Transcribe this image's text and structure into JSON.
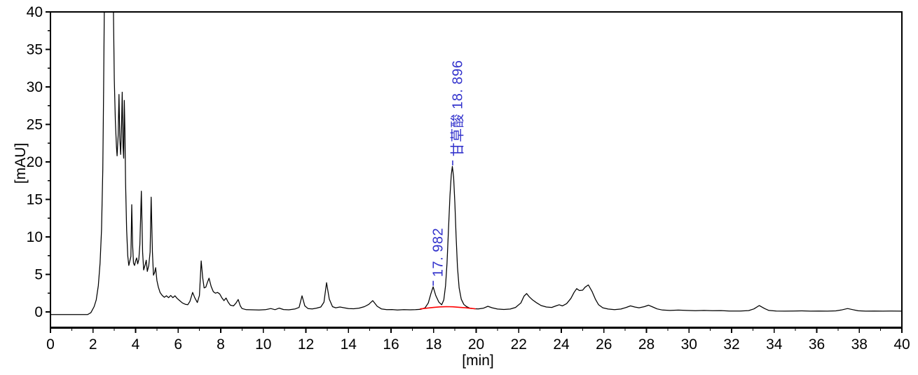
{
  "figure": {
    "background": "#ffffff",
    "y_axis": {
      "label": "[mAU]",
      "min": 0,
      "max": 40,
      "major_step": 5,
      "minor_step": 2.5,
      "tick_labels": [
        "0",
        "5",
        "10",
        "15",
        "20",
        "25",
        "30",
        "35",
        "40"
      ]
    },
    "x_axis": {
      "label": "[min]",
      "min": 0,
      "max": 40,
      "major_step": 2,
      "minor_step": 1,
      "tick_labels": [
        "0",
        "2",
        "4",
        "6",
        "8",
        "10",
        "12",
        "14",
        "16",
        "18",
        "20",
        "22",
        "24",
        "26",
        "28",
        "30",
        "32",
        "34",
        "36",
        "38",
        "40"
      ]
    },
    "colors": {
      "trace": "#000000",
      "integration_baseline": "#ff0000",
      "peak_annotation": "#3333cc",
      "axis": "#000000"
    }
  },
  "chart_data": {
    "type": "line",
    "title": "",
    "xlabel": "[min]",
    "ylabel": "[mAU]",
    "xlim": [
      0,
      40
    ],
    "ylim": [
      0,
      40
    ],
    "grid": false,
    "legend": false,
    "series": [
      {
        "name": "detector-signal",
        "color": "#000000",
        "points": [
          [
            0,
            -0.35
          ],
          [
            0.5,
            -0.35
          ],
          [
            1.0,
            -0.35
          ],
          [
            1.4,
            -0.35
          ],
          [
            1.75,
            -0.35
          ],
          [
            1.9,
            -0.1
          ],
          [
            2.05,
            0.7
          ],
          [
            2.15,
            1.6
          ],
          [
            2.25,
            3.5
          ],
          [
            2.33,
            6.5
          ],
          [
            2.4,
            11
          ],
          [
            2.46,
            19
          ],
          [
            2.5,
            30
          ],
          [
            2.53,
            40
          ],
          [
            2.56,
            43
          ],
          [
            2.93,
            43
          ],
          [
            2.96,
            40
          ],
          [
            3.0,
            31
          ],
          [
            3.05,
            25.5
          ],
          [
            3.1,
            22
          ],
          [
            3.13,
            20.8
          ],
          [
            3.18,
            23.5
          ],
          [
            3.22,
            29.0
          ],
          [
            3.26,
            23
          ],
          [
            3.3,
            21.0
          ],
          [
            3.34,
            25
          ],
          [
            3.37,
            29.3
          ],
          [
            3.41,
            22
          ],
          [
            3.44,
            20.5
          ],
          [
            3.47,
            28.2
          ],
          [
            3.5,
            24
          ],
          [
            3.53,
            17.2
          ],
          [
            3.58,
            11
          ],
          [
            3.63,
            7.5
          ],
          [
            3.68,
            6.2
          ],
          [
            3.73,
            6.8
          ],
          [
            3.78,
            7.4
          ],
          [
            3.82,
            14.3
          ],
          [
            3.86,
            9
          ],
          [
            3.9,
            6.5
          ],
          [
            3.95,
            6.2
          ],
          [
            4.0,
            6.8
          ],
          [
            4.05,
            7.2
          ],
          [
            4.1,
            6.4
          ],
          [
            4.15,
            7.0
          ],
          [
            4.2,
            9
          ],
          [
            4.27,
            16.1
          ],
          [
            4.33,
            8
          ],
          [
            4.38,
            5.6
          ],
          [
            4.45,
            6.3
          ],
          [
            4.5,
            6.9
          ],
          [
            4.55,
            5.4
          ],
          [
            4.62,
            6.2
          ],
          [
            4.68,
            8
          ],
          [
            4.73,
            15.3
          ],
          [
            4.79,
            8
          ],
          [
            4.84,
            4.9
          ],
          [
            4.9,
            5.3
          ],
          [
            4.94,
            5.9
          ],
          [
            5.0,
            4.2
          ],
          [
            5.07,
            3.3
          ],
          [
            5.15,
            2.6
          ],
          [
            5.25,
            2.2
          ],
          [
            5.35,
            1.95
          ],
          [
            5.45,
            2.15
          ],
          [
            5.55,
            1.9
          ],
          [
            5.65,
            2.2
          ],
          [
            5.75,
            1.9
          ],
          [
            5.85,
            2.15
          ],
          [
            5.95,
            1.8
          ],
          [
            6.05,
            1.55
          ],
          [
            6.2,
            1.2
          ],
          [
            6.35,
            1.0
          ],
          [
            6.45,
            0.95
          ],
          [
            6.55,
            1.4
          ],
          [
            6.68,
            2.6
          ],
          [
            6.78,
            1.9
          ],
          [
            6.9,
            1.25
          ],
          [
            7.0,
            2.2
          ],
          [
            7.08,
            6.8
          ],
          [
            7.15,
            4.6
          ],
          [
            7.22,
            3.2
          ],
          [
            7.3,
            3.3
          ],
          [
            7.38,
            4.0
          ],
          [
            7.45,
            4.5
          ],
          [
            7.55,
            3.4
          ],
          [
            7.65,
            2.7
          ],
          [
            7.75,
            2.5
          ],
          [
            7.85,
            2.6
          ],
          [
            7.95,
            2.4
          ],
          [
            8.05,
            1.9
          ],
          [
            8.15,
            1.5
          ],
          [
            8.25,
            1.85
          ],
          [
            8.35,
            1.3
          ],
          [
            8.45,
            0.9
          ],
          [
            8.6,
            0.8
          ],
          [
            8.72,
            1.2
          ],
          [
            8.82,
            1.65
          ],
          [
            8.92,
            0.8
          ],
          [
            9.0,
            0.45
          ],
          [
            9.2,
            0.3
          ],
          [
            9.5,
            0.28
          ],
          [
            9.8,
            0.25
          ],
          [
            10.1,
            0.3
          ],
          [
            10.35,
            0.45
          ],
          [
            10.55,
            0.3
          ],
          [
            10.75,
            0.5
          ],
          [
            10.95,
            0.32
          ],
          [
            11.2,
            0.28
          ],
          [
            11.5,
            0.4
          ],
          [
            11.68,
            0.6
          ],
          [
            11.82,
            2.15
          ],
          [
            11.95,
            0.8
          ],
          [
            12.1,
            0.45
          ],
          [
            12.3,
            0.4
          ],
          [
            12.5,
            0.5
          ],
          [
            12.7,
            0.65
          ],
          [
            12.85,
            1.3
          ],
          [
            12.97,
            3.9
          ],
          [
            13.1,
            1.7
          ],
          [
            13.25,
            0.7
          ],
          [
            13.4,
            0.55
          ],
          [
            13.6,
            0.65
          ],
          [
            13.8,
            0.55
          ],
          [
            14.0,
            0.45
          ],
          [
            14.25,
            0.42
          ],
          [
            14.5,
            0.5
          ],
          [
            14.75,
            0.7
          ],
          [
            14.95,
            1.0
          ],
          [
            15.14,
            1.5
          ],
          [
            15.35,
            0.75
          ],
          [
            15.55,
            0.4
          ],
          [
            15.8,
            0.3
          ],
          [
            16.05,
            0.32
          ],
          [
            16.3,
            0.25
          ],
          [
            16.6,
            0.3
          ],
          [
            16.9,
            0.28
          ],
          [
            17.15,
            0.3
          ],
          [
            17.4,
            0.35
          ],
          [
            17.6,
            0.55
          ],
          [
            17.75,
            1.2
          ],
          [
            17.87,
            2.4
          ],
          [
            17.98,
            3.35
          ],
          [
            18.1,
            2.2
          ],
          [
            18.25,
            1.3
          ],
          [
            18.38,
            0.95
          ],
          [
            18.48,
            1.6
          ],
          [
            18.56,
            3.5
          ],
          [
            18.63,
            6.5
          ],
          [
            18.7,
            11
          ],
          [
            18.77,
            15.5
          ],
          [
            18.83,
            18.3
          ],
          [
            18.88,
            19.4
          ],
          [
            18.94,
            18
          ],
          [
            19.0,
            14.5
          ],
          [
            19.06,
            10
          ],
          [
            19.12,
            6
          ],
          [
            19.2,
            3.2
          ],
          [
            19.3,
            1.7
          ],
          [
            19.42,
            1.0
          ],
          [
            19.55,
            0.7
          ],
          [
            19.7,
            0.5
          ],
          [
            19.9,
            0.42
          ],
          [
            20.1,
            0.4
          ],
          [
            20.35,
            0.5
          ],
          [
            20.55,
            0.75
          ],
          [
            20.75,
            0.55
          ],
          [
            21.0,
            0.38
          ],
          [
            21.3,
            0.33
          ],
          [
            21.6,
            0.38
          ],
          [
            21.85,
            0.6
          ],
          [
            22.1,
            1.2
          ],
          [
            22.25,
            2.1
          ],
          [
            22.37,
            2.45
          ],
          [
            22.5,
            2.0
          ],
          [
            22.65,
            1.6
          ],
          [
            22.85,
            1.2
          ],
          [
            23.05,
            0.85
          ],
          [
            23.3,
            0.65
          ],
          [
            23.55,
            0.6
          ],
          [
            23.75,
            0.8
          ],
          [
            23.9,
            0.95
          ],
          [
            24.05,
            0.8
          ],
          [
            24.25,
            1.1
          ],
          [
            24.45,
            1.8
          ],
          [
            24.6,
            2.6
          ],
          [
            24.72,
            3.1
          ],
          [
            24.85,
            2.85
          ],
          [
            25.0,
            2.9
          ],
          [
            25.12,
            3.3
          ],
          [
            25.27,
            3.6
          ],
          [
            25.45,
            2.7
          ],
          [
            25.6,
            1.7
          ],
          [
            25.75,
            0.95
          ],
          [
            25.95,
            0.55
          ],
          [
            26.2,
            0.38
          ],
          [
            26.5,
            0.3
          ],
          [
            26.8,
            0.38
          ],
          [
            27.05,
            0.6
          ],
          [
            27.25,
            0.8
          ],
          [
            27.45,
            0.65
          ],
          [
            27.65,
            0.55
          ],
          [
            27.9,
            0.7
          ],
          [
            28.1,
            0.9
          ],
          [
            28.3,
            0.65
          ],
          [
            28.5,
            0.4
          ],
          [
            28.75,
            0.25
          ],
          [
            29.1,
            0.2
          ],
          [
            29.5,
            0.24
          ],
          [
            29.9,
            0.2
          ],
          [
            30.3,
            0.16
          ],
          [
            30.7,
            0.2
          ],
          [
            31.1,
            0.16
          ],
          [
            31.5,
            0.18
          ],
          [
            31.9,
            0.12
          ],
          [
            32.4,
            0.12
          ],
          [
            32.8,
            0.18
          ],
          [
            33.05,
            0.4
          ],
          [
            33.3,
            0.85
          ],
          [
            33.55,
            0.45
          ],
          [
            33.75,
            0.2
          ],
          [
            34.1,
            0.12
          ],
          [
            34.5,
            0.1
          ],
          [
            34.9,
            0.12
          ],
          [
            35.3,
            0.14
          ],
          [
            35.7,
            0.1
          ],
          [
            36.1,
            0.12
          ],
          [
            36.5,
            0.1
          ],
          [
            36.9,
            0.14
          ],
          [
            37.15,
            0.25
          ],
          [
            37.45,
            0.45
          ],
          [
            37.7,
            0.3
          ],
          [
            37.95,
            0.15
          ],
          [
            38.3,
            0.1
          ],
          [
            38.7,
            0.12
          ],
          [
            39.1,
            0.1
          ],
          [
            39.5,
            0.12
          ],
          [
            40.0,
            0.1
          ]
        ]
      },
      {
        "name": "integration-baseline",
        "color": "#ff0000",
        "points": [
          [
            17.38,
            0.4
          ],
          [
            17.7,
            0.5
          ],
          [
            18.0,
            0.6
          ],
          [
            18.3,
            0.67
          ],
          [
            18.6,
            0.7
          ],
          [
            18.9,
            0.68
          ],
          [
            19.2,
            0.62
          ],
          [
            19.5,
            0.55
          ],
          [
            19.75,
            0.48
          ],
          [
            19.95,
            0.42
          ]
        ]
      }
    ],
    "peaks": [
      {
        "name": "unidentified-peak",
        "retention_time": 17.982,
        "label": "17. 982",
        "apex_mAU": 3.35
      },
      {
        "name": "甘草酸",
        "retention_time": 18.896,
        "label": "甘草酸 18. 896",
        "apex_mAU": 19.4
      }
    ]
  }
}
